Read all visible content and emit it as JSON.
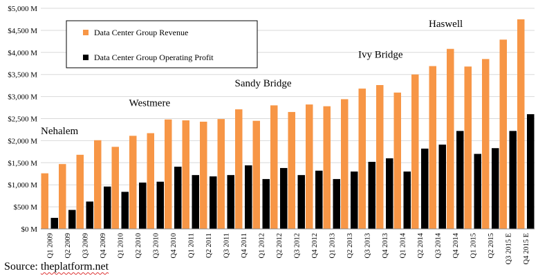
{
  "chart_data": {
    "type": "bar",
    "categories": [
      "Q1 2009",
      "Q2 2009",
      "Q3 2009",
      "Q4 2009",
      "Q1 2010",
      "Q2 2010",
      "Q3 2010",
      "Q4 2010",
      "Q1 2011",
      "Q2 2011",
      "Q3 2011",
      "Q4 2011",
      "Q1 2012",
      "Q2 2012",
      "Q3 2012",
      "Q4 2012",
      "Q1 2013",
      "Q2 2013",
      "Q3 2013",
      "Q4 2013",
      "Q1 2014",
      "Q2 2014",
      "Q3 2014",
      "Q4 2014",
      "Q1 2015",
      "Q2 2015",
      "Q3 2015 E",
      "Q4 2015 E"
    ],
    "series": [
      {
        "name": "Data Center Group Revenue",
        "color": "#F79646",
        "values": [
          1260,
          1470,
          1680,
          2010,
          1860,
          2110,
          2170,
          2480,
          2460,
          2430,
          2490,
          2710,
          2450,
          2800,
          2650,
          2820,
          2780,
          2940,
          3180,
          3260,
          3090,
          3500,
          3690,
          4080,
          3680,
          3850,
          4290,
          4750
        ]
      },
      {
        "name": "Data Center Group Operating Profit",
        "color": "#000000",
        "values": [
          250,
          430,
          620,
          960,
          840,
          1050,
          1070,
          1410,
          1220,
          1190,
          1220,
          1440,
          1130,
          1380,
          1220,
          1320,
          1130,
          1300,
          1520,
          1600,
          1300,
          1820,
          1910,
          2220,
          1700,
          1830,
          2220,
          2600
        ]
      }
    ],
    "ylim": [
      0,
      5000
    ],
    "yticks": [
      0,
      500,
      1000,
      1500,
      2000,
      2500,
      3000,
      3500,
      4000,
      4500,
      5000
    ],
    "ytick_labels": [
      "$0 M",
      "$500 M",
      "$1,000 M",
      "$1,500 M",
      "$2,000 M",
      "$2,500 M",
      "$3,000 M",
      "$3,500 M",
      "$4,000 M",
      "$4,500 M",
      "$5,000 M"
    ],
    "grid": true,
    "legend": "top-left",
    "annotations": [
      {
        "text": "Nehalem",
        "x": "Q1 2009",
        "y": 2150
      },
      {
        "text": "Westmere",
        "x": "Q2 2010",
        "y": 2780
      },
      {
        "text": "Sandy Bridge",
        "x": "Q4 2011",
        "y": 3230
      },
      {
        "text": "Ivy Bridge",
        "x": "Q3 2013",
        "y": 3880
      },
      {
        "text": "Haswell",
        "x": "Q3 2014",
        "y": 4580
      }
    ]
  },
  "source": {
    "prefix": "Source: ",
    "site": "theplatform.net"
  }
}
